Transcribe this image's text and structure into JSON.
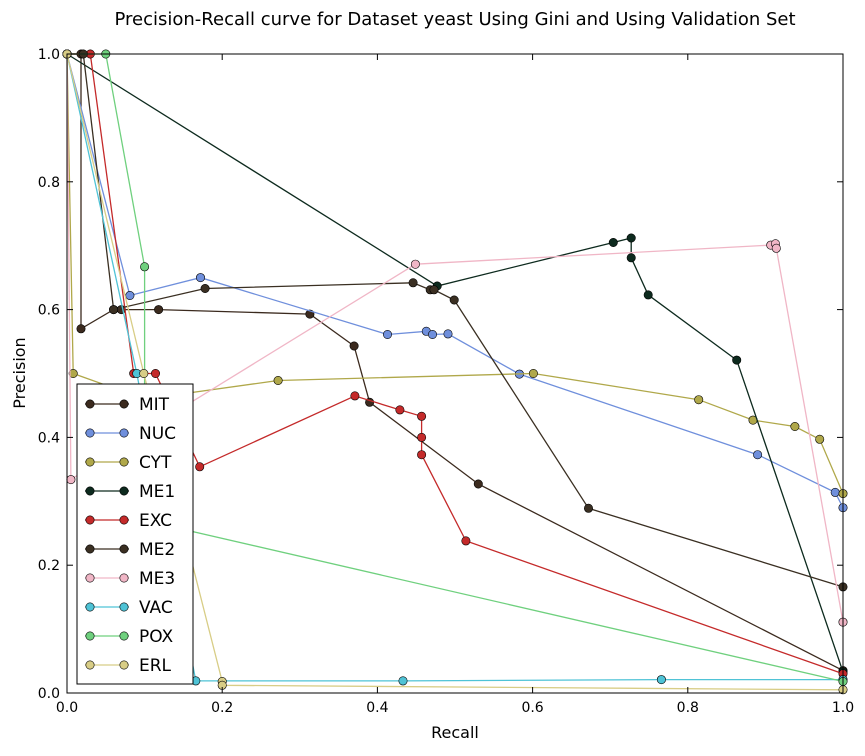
{
  "chart_data": {
    "type": "line",
    "title": "Precision-Recall curve for Dataset yeast Using Gini and Using Validation Set",
    "xlabel": "Recall",
    "ylabel": "Precision",
    "xlim": [
      0.0,
      1.0
    ],
    "ylim": [
      0.0,
      1.0
    ],
    "xticks": [
      "0.0",
      "0.2",
      "0.4",
      "0.6",
      "0.8",
      "1.0"
    ],
    "yticks": [
      "0.0",
      "0.2",
      "0.4",
      "0.6",
      "0.8",
      "1.0"
    ],
    "grid": false,
    "legend_position": "lower-left",
    "series": [
      {
        "name": "MIT",
        "color": "#3b2a1e",
        "points": [
          [
            0.0,
            1.0
          ],
          [
            0.018,
            1.0
          ],
          [
            0.018,
            0.57
          ],
          [
            0.06,
            0.6
          ],
          [
            0.07,
            0.6
          ],
          [
            0.118,
            0.6
          ],
          [
            0.313,
            0.593
          ],
          [
            0.37,
            0.543
          ],
          [
            0.39,
            0.455
          ],
          [
            0.53,
            0.327
          ],
          [
            1.0,
            0.035
          ]
        ]
      },
      {
        "name": "NUC",
        "color": "#6f8fdc",
        "points": [
          [
            0.0,
            1.0
          ],
          [
            0.081,
            0.622
          ],
          [
            0.172,
            0.65
          ],
          [
            0.413,
            0.561
          ],
          [
            0.463,
            0.566
          ],
          [
            0.471,
            0.561
          ],
          [
            0.491,
            0.562
          ],
          [
            0.583,
            0.499
          ],
          [
            0.89,
            0.373
          ],
          [
            0.99,
            0.314
          ],
          [
            1.0,
            0.29
          ]
        ]
      },
      {
        "name": "CYT",
        "color": "#b0a84a",
        "points": [
          [
            0.0,
            1.0
          ],
          [
            0.008,
            0.5
          ],
          [
            0.1,
            0.46
          ],
          [
            0.272,
            0.489
          ],
          [
            0.601,
            0.5
          ],
          [
            0.814,
            0.459
          ],
          [
            0.884,
            0.427
          ],
          [
            0.938,
            0.417
          ],
          [
            0.97,
            0.397
          ],
          [
            1.0,
            0.312
          ]
        ]
      },
      {
        "name": "ME1",
        "color": "#0d2a1e",
        "points": [
          [
            0.0,
            1.0
          ],
          [
            0.477,
            0.637
          ],
          [
            0.704,
            0.705
          ],
          [
            0.727,
            0.712
          ],
          [
            0.727,
            0.681
          ],
          [
            0.749,
            0.623
          ],
          [
            0.863,
            0.521
          ],
          [
            1.0,
            0.033
          ]
        ]
      },
      {
        "name": "EXC",
        "color": "#c42a2a",
        "points": [
          [
            0.0,
            1.0
          ],
          [
            0.03,
            1.0
          ],
          [
            0.086,
            0.5
          ],
          [
            0.114,
            0.5
          ],
          [
            0.171,
            0.354
          ],
          [
            0.371,
            0.465
          ],
          [
            0.429,
            0.443
          ],
          [
            0.457,
            0.433
          ],
          [
            0.457,
            0.4
          ],
          [
            0.457,
            0.373
          ],
          [
            0.514,
            0.238
          ],
          [
            1.0,
            0.03
          ]
        ]
      },
      {
        "name": "ME2",
        "color": "#3a2f22",
        "points": [
          [
            0.0,
            1.0
          ],
          [
            0.021,
            1.0
          ],
          [
            0.06,
            0.6
          ],
          [
            0.178,
            0.633
          ],
          [
            0.446,
            0.642
          ],
          [
            0.468,
            0.631
          ],
          [
            0.473,
            0.631
          ],
          [
            0.499,
            0.615
          ],
          [
            0.672,
            0.289
          ],
          [
            1.0,
            0.166
          ]
        ]
      },
      {
        "name": "ME3",
        "color": "#f0b6c6",
        "points": [
          [
            0.0,
            1.0
          ],
          [
            0.005,
            0.334
          ],
          [
            0.14,
            0.44
          ],
          [
            0.449,
            0.671
          ],
          [
            0.907,
            0.701
          ],
          [
            0.913,
            0.703
          ],
          [
            0.914,
            0.696
          ],
          [
            1.0,
            0.111
          ]
        ]
      },
      {
        "name": "VAC",
        "color": "#4fc3d6",
        "points": [
          [
            0.0,
            1.0
          ],
          [
            0.09,
            0.5
          ],
          [
            0.166,
            0.019
          ],
          [
            0.433,
            0.019
          ],
          [
            0.766,
            0.021
          ],
          [
            1.0,
            0.021
          ]
        ]
      },
      {
        "name": "POX",
        "color": "#6fd07e",
        "points": [
          [
            0.0,
            1.0
          ],
          [
            0.05,
            1.0
          ],
          [
            0.1,
            0.667
          ],
          [
            0.1,
            0.27
          ],
          [
            1.0,
            0.018
          ]
        ]
      },
      {
        "name": "ERL",
        "color": "#d8cd86",
        "points": [
          [
            0.0,
            1.0
          ],
          [
            0.099,
            0.5
          ],
          [
            0.2,
            0.018
          ],
          [
            0.2,
            0.012
          ],
          [
            1.0,
            0.005
          ]
        ]
      }
    ]
  }
}
